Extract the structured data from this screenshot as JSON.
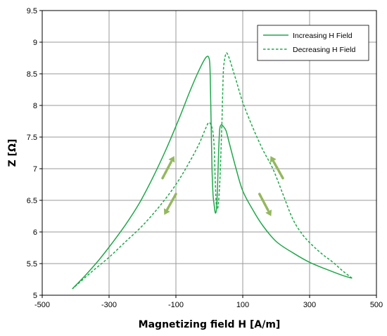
{
  "chart_data": {
    "type": "line",
    "title": "",
    "xlabel": "Magnetizing field H [A/m]",
    "ylabel": "Z [Ω]",
    "xlim": [
      -500,
      500
    ],
    "ylim": [
      5,
      9.5
    ],
    "xticks": [
      -500,
      -300,
      -100,
      100,
      300,
      500
    ],
    "xtick_labels": [
      "-500",
      "-300",
      "-100",
      "100",
      "300",
      "500"
    ],
    "yticks": [
      5,
      5.5,
      6,
      6.5,
      7,
      7.5,
      8,
      8.5,
      9,
      9.5
    ],
    "ytick_labels": [
      "5",
      "5.5",
      "6",
      "6.5",
      "7",
      "7.5",
      "8",
      "8.5",
      "9",
      "9.5"
    ],
    "grid": true,
    "legend_position": "top-right",
    "line_color": "#1fa84a",
    "arrow_color": "#94b85e",
    "series": [
      {
        "name": "Increasing H Field",
        "style": "solid",
        "x": [
          -410,
          -370,
          -330,
          -290,
          -250,
          -210,
          -170,
          -130,
          -90,
          -60,
          -40,
          -25,
          -15,
          -8,
          -2,
          2,
          5,
          8,
          11,
          14,
          18,
          22,
          25,
          28,
          31,
          35,
          40,
          50,
          60,
          80,
          100,
          130,
          160,
          200,
          250,
          300,
          350,
          400,
          427
        ],
        "y": [
          5.1,
          5.32,
          5.56,
          5.83,
          6.12,
          6.45,
          6.85,
          7.3,
          7.8,
          8.2,
          8.45,
          8.62,
          8.72,
          8.77,
          8.76,
          8.6,
          7.8,
          7.0,
          6.6,
          6.45,
          6.3,
          6.4,
          6.8,
          7.3,
          7.62,
          7.69,
          7.68,
          7.6,
          7.4,
          7.0,
          6.65,
          6.35,
          6.1,
          5.85,
          5.67,
          5.52,
          5.41,
          5.31,
          5.27
        ]
      },
      {
        "name": "Decreasing H Field",
        "style": "dashed",
        "x": [
          427,
          400,
          370,
          340,
          310,
          280,
          250,
          220,
          190,
          160,
          130,
          100,
          80,
          70,
          60,
          52,
          48,
          45,
          42,
          40,
          38,
          35,
          33,
          31,
          28,
          25,
          22,
          20,
          17,
          15,
          10,
          0,
          -10,
          -30,
          -60,
          -100,
          -150,
          -200,
          -250,
          -300,
          -350,
          -410
        ],
        "y": [
          5.27,
          5.38,
          5.52,
          5.64,
          5.78,
          5.95,
          6.2,
          6.6,
          7.0,
          7.3,
          7.65,
          8.05,
          8.4,
          8.57,
          8.74,
          8.83,
          8.79,
          8.7,
          8.55,
          8.2,
          7.8,
          7.3,
          7.0,
          6.75,
          6.5,
          6.37,
          6.38,
          6.5,
          6.9,
          7.3,
          7.6,
          7.73,
          7.65,
          7.4,
          7.1,
          6.75,
          6.4,
          6.1,
          5.85,
          5.6,
          5.38,
          5.1
        ]
      }
    ],
    "annotations": [
      {
        "type": "arrow",
        "from": [
          -140,
          6.85
        ],
        "to": [
          -105,
          7.2
        ]
      },
      {
        "type": "arrow",
        "from": [
          -100,
          6.6
        ],
        "to": [
          -135,
          6.27
        ]
      },
      {
        "type": "arrow",
        "from": [
          150,
          6.6
        ],
        "to": [
          185,
          6.25
        ]
      },
      {
        "type": "arrow",
        "from": [
          220,
          6.85
        ],
        "to": [
          183,
          7.2
        ]
      }
    ]
  }
}
